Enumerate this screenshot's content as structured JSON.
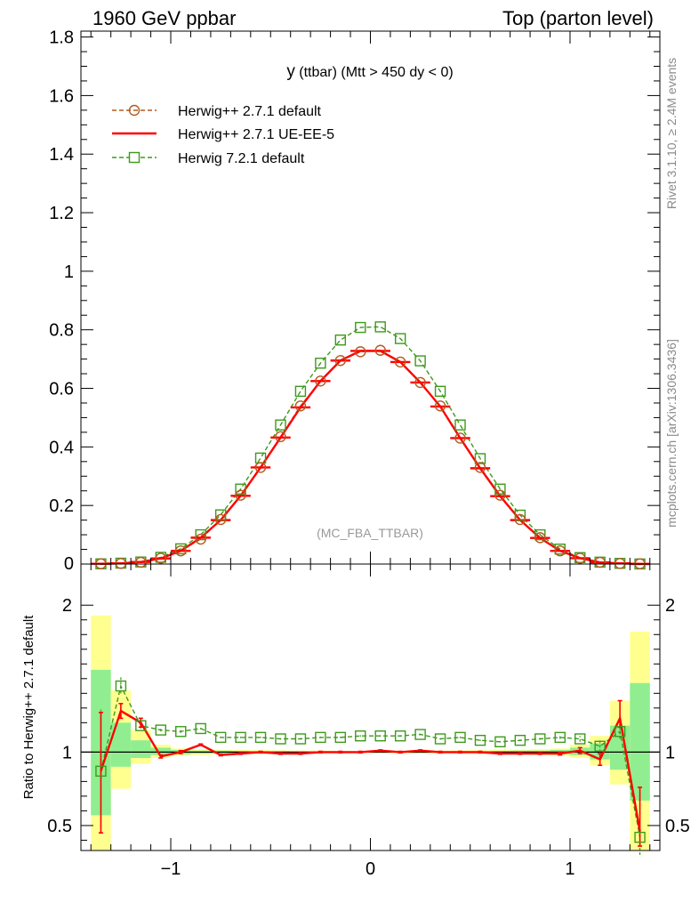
{
  "header": {
    "left": "1960 GeV ppbar",
    "right": "Top (parton level)"
  },
  "side": {
    "rivet": "Rivet 3.1.10, ≥ 2.4M events",
    "mcplots": "mcplots.cern.ch [arXiv:1306.3436]"
  },
  "plot_title": {
    "main": "y",
    "sub": " (ttbar) (Mtt > 450 dy < 0)"
  },
  "analysis_label": "(MC_FBA_TTBAR)",
  "ratio_ylabel": "Ratio to Herwig++ 2.7.1 default",
  "colors": {
    "ref": "#b35a1f",
    "ueee5": "#ff0000",
    "h721": "#3d9a1a",
    "band_inner": "#90ee90",
    "band_outer": "#ffff90"
  },
  "chart_data": [
    {
      "type": "line",
      "xlim": [
        -1.45,
        1.45
      ],
      "ylim": [
        0,
        1.82
      ],
      "yticks": [
        0.2,
        0.4,
        0.6,
        0.8,
        1.0,
        1.2,
        1.4,
        1.6,
        1.8
      ],
      "ytick_labels": [
        "0.2",
        "0.4",
        "0.6",
        "0.8",
        "1",
        "1.2",
        "1.4",
        "1.6",
        "1.8"
      ],
      "legend_position": "top-left",
      "x": [
        -1.35,
        -1.25,
        -1.15,
        -1.05,
        -0.95,
        -0.85,
        -0.75,
        -0.65,
        -0.55,
        -0.45,
        -0.35,
        -0.25,
        -0.15,
        -0.05,
        0.05,
        0.15,
        0.25,
        0.35,
        0.45,
        0.55,
        0.65,
        0.75,
        0.85,
        0.95,
        1.05,
        1.15,
        1.25,
        1.35
      ],
      "series": [
        {
          "name": "Herwig++ 2.7.1 default",
          "style": "dashed-circle",
          "values": [
            0.0008,
            0.002,
            0.006,
            0.02,
            0.045,
            0.085,
            0.152,
            0.235,
            0.33,
            0.435,
            0.54,
            0.625,
            0.695,
            0.725,
            0.73,
            0.69,
            0.62,
            0.54,
            0.43,
            0.33,
            0.235,
            0.152,
            0.09,
            0.045,
            0.02,
            0.006,
            0.002,
            0.0008
          ]
        },
        {
          "name": "Herwig++ 2.7.1 UE-EE-5",
          "style": "solid",
          "values": [
            0.001,
            0.0025,
            0.007,
            0.019,
            0.045,
            0.09,
            0.15,
            0.233,
            0.33,
            0.432,
            0.535,
            0.625,
            0.695,
            0.728,
            0.728,
            0.69,
            0.62,
            0.538,
            0.43,
            0.327,
            0.232,
            0.15,
            0.089,
            0.045,
            0.02,
            0.0055,
            0.0025,
            0.0004
          ]
        },
        {
          "name": "Herwig 7.2.1 default",
          "style": "dashed-square",
          "values": [
            0.0007,
            0.003,
            0.007,
            0.023,
            0.052,
            0.1,
            0.168,
            0.256,
            0.362,
            0.475,
            0.59,
            0.686,
            0.765,
            0.808,
            0.81,
            0.77,
            0.694,
            0.59,
            0.475,
            0.36,
            0.256,
            0.167,
            0.1,
            0.051,
            0.022,
            0.0065,
            0.0023,
            0.0003
          ]
        }
      ]
    },
    {
      "type": "line",
      "ylabel": "Ratio to Herwig++ 2.7.1 default",
      "xlim": [
        -1.45,
        1.45
      ],
      "ylim": [
        0.33,
        2.28
      ],
      "xticks": [
        -1,
        0,
        1
      ],
      "xtick_labels": [
        "−1",
        "0",
        "1"
      ],
      "yticks": [
        0.5,
        1,
        2
      ],
      "ytick_labels": [
        "0.5",
        "1",
        "2"
      ],
      "x": [
        -1.35,
        -1.25,
        -1.15,
        -1.05,
        -0.95,
        -0.85,
        -0.75,
        -0.65,
        -0.55,
        -0.45,
        -0.35,
        -0.25,
        -0.15,
        -0.05,
        0.05,
        0.15,
        0.25,
        0.35,
        0.45,
        0.55,
        0.65,
        0.75,
        0.85,
        0.95,
        1.05,
        1.15,
        1.25,
        1.35
      ],
      "band_inner": [
        [
          0.57,
          1.56
        ],
        [
          0.9,
          1.2
        ],
        [
          0.96,
          1.08
        ],
        [
          0.98,
          1.03
        ],
        [
          0.985,
          1.015
        ],
        [
          0.99,
          1.01
        ],
        [
          0.99,
          1.01
        ],
        [
          0.992,
          1.008
        ],
        [
          0.993,
          1.007
        ],
        [
          0.994,
          1.006
        ],
        [
          0.995,
          1.005
        ],
        [
          0.995,
          1.005
        ],
        [
          0.996,
          1.004
        ],
        [
          0.996,
          1.004
        ],
        [
          0.996,
          1.004
        ],
        [
          0.996,
          1.004
        ],
        [
          0.995,
          1.005
        ],
        [
          0.995,
          1.005
        ],
        [
          0.994,
          1.006
        ],
        [
          0.993,
          1.007
        ],
        [
          0.992,
          1.008
        ],
        [
          0.99,
          1.01
        ],
        [
          0.99,
          1.01
        ],
        [
          0.985,
          1.015
        ],
        [
          0.98,
          1.03
        ],
        [
          0.95,
          1.06
        ],
        [
          0.88,
          1.18
        ],
        [
          0.67,
          1.47
        ]
      ],
      "band_outer": [
        [
          0.33,
          1.93
        ],
        [
          0.75,
          1.42
        ],
        [
          0.92,
          1.15
        ],
        [
          0.96,
          1.05
        ],
        [
          0.975,
          1.025
        ],
        [
          0.98,
          1.02
        ],
        [
          0.985,
          1.015
        ],
        [
          0.985,
          1.015
        ],
        [
          0.987,
          1.013
        ],
        [
          0.988,
          1.012
        ],
        [
          0.99,
          1.01
        ],
        [
          0.99,
          1.01
        ],
        [
          0.991,
          1.009
        ],
        [
          0.992,
          1.008
        ],
        [
          0.992,
          1.008
        ],
        [
          0.991,
          1.009
        ],
        [
          0.99,
          1.01
        ],
        [
          0.99,
          1.01
        ],
        [
          0.988,
          1.012
        ],
        [
          0.987,
          1.013
        ],
        [
          0.985,
          1.015
        ],
        [
          0.985,
          1.015
        ],
        [
          0.98,
          1.02
        ],
        [
          0.975,
          1.025
        ],
        [
          0.96,
          1.05
        ],
        [
          0.91,
          1.11
        ],
        [
          0.78,
          1.35
        ],
        [
          0.33,
          1.82
        ]
      ],
      "series": [
        {
          "name": "Herwig++ 2.7.1 UE-EE-5",
          "style": "solid",
          "values": [
            0.87,
            1.28,
            1.2,
            0.97,
            1.0,
            1.05,
            0.98,
            0.99,
            1.0,
            0.99,
            0.99,
            1.0,
            1.0,
            1.0,
            1.01,
            1.0,
            1.01,
            1.0,
            1.0,
            1.0,
            0.99,
            0.99,
            0.99,
            0.99,
            1.01,
            0.95,
            1.23,
            0.46
          ],
          "err_low": [
            0.42,
            0.05,
            0.03,
            0.01,
            0.01,
            0.005,
            0.005,
            0.005,
            0.005,
            0.005,
            0.005,
            0.005,
            0.005,
            0.005,
            0.005,
            0.005,
            0.005,
            0.005,
            0.005,
            0.005,
            0.005,
            0.005,
            0.005,
            0.01,
            0.02,
            0.04,
            0.06,
            0.1
          ],
          "err_high": [
            0.4,
            0.05,
            0.03,
            0.01,
            0.01,
            0.005,
            0.005,
            0.005,
            0.005,
            0.005,
            0.005,
            0.005,
            0.005,
            0.005,
            0.005,
            0.005,
            0.005,
            0.005,
            0.005,
            0.005,
            0.005,
            0.005,
            0.005,
            0.01,
            0.02,
            0.04,
            0.12,
            0.3
          ]
        },
        {
          "name": "Herwig 7.2.1 default",
          "style": "dashed-square",
          "values": [
            0.87,
            1.45,
            1.18,
            1.15,
            1.14,
            1.16,
            1.1,
            1.1,
            1.1,
            1.09,
            1.09,
            1.1,
            1.1,
            1.11,
            1.11,
            1.11,
            1.12,
            1.09,
            1.1,
            1.08,
            1.07,
            1.08,
            1.09,
            1.1,
            1.09,
            1.04,
            1.14,
            0.42
          ],
          "err_low": [
            0.38,
            0.05,
            0.02,
            0.01,
            0.01,
            0.005,
            0.005,
            0.005,
            0.005,
            0.005,
            0.005,
            0.005,
            0.005,
            0.005,
            0.005,
            0.005,
            0.005,
            0.005,
            0.005,
            0.005,
            0.005,
            0.005,
            0.005,
            0.01,
            0.02,
            0.04,
            0.05,
            0.12
          ],
          "err_high": [
            0.42,
            0.06,
            0.02,
            0.01,
            0.01,
            0.005,
            0.005,
            0.005,
            0.005,
            0.005,
            0.005,
            0.005,
            0.005,
            0.005,
            0.005,
            0.005,
            0.005,
            0.005,
            0.005,
            0.005,
            0.005,
            0.005,
            0.005,
            0.01,
            0.02,
            0.04,
            0.05,
            0.3
          ]
        }
      ]
    }
  ]
}
